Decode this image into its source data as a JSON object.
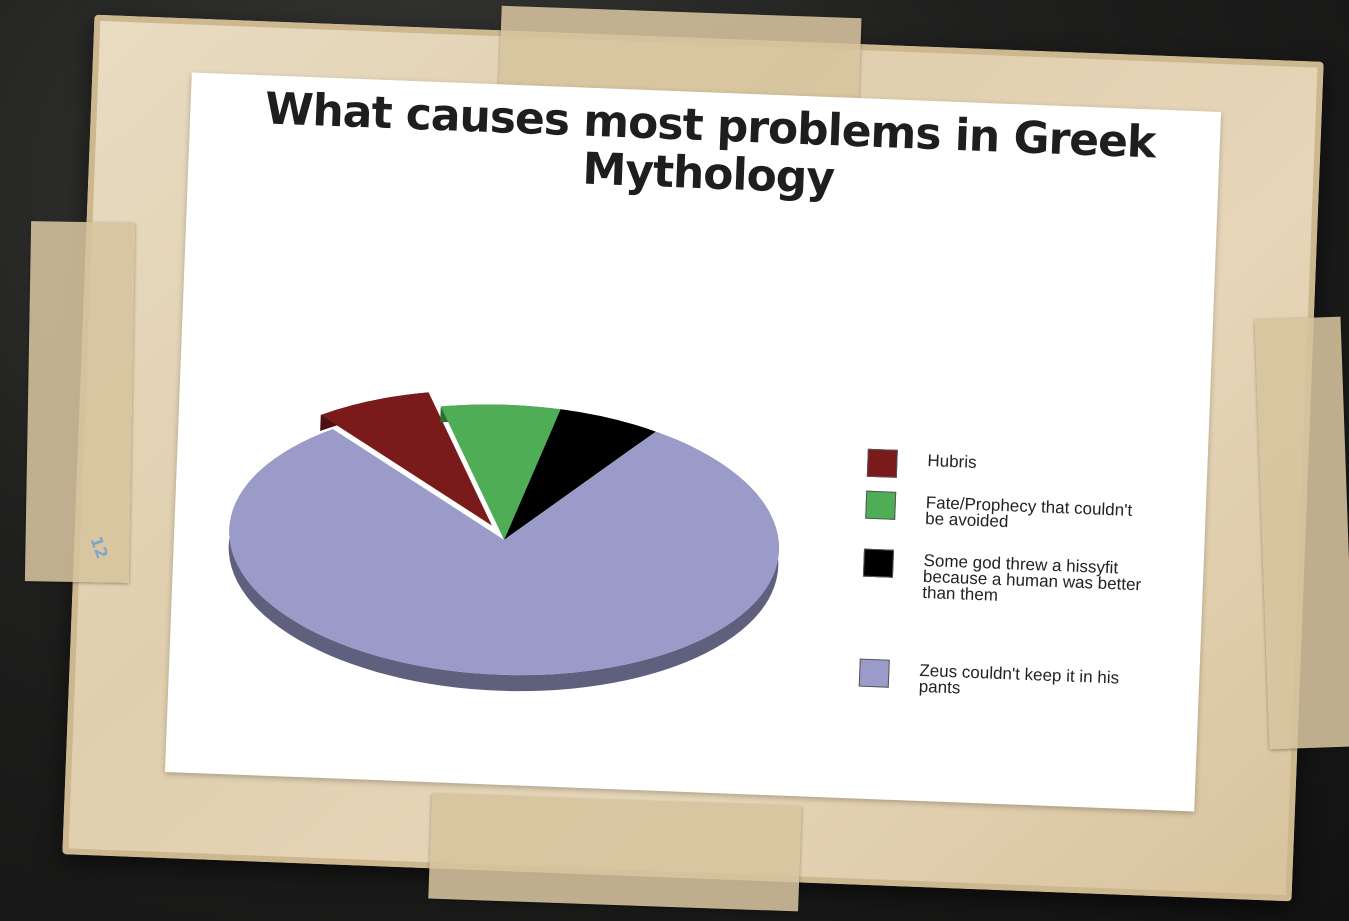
{
  "chart_data": {
    "type": "pie",
    "title": "What causes most problems in Greek Mythology",
    "categories": [
      "Hubris",
      "Fate/Prophecy that couldn't be avoided",
      "Some god threw a hissyfit because a human was better than them",
      "Zeus couldn't keep it in his pants"
    ],
    "values": [
      7,
      7,
      6,
      80
    ],
    "colors": [
      "#7a1a1a",
      "#4fae55",
      "#000000",
      "#9a9bc9"
    ],
    "exploded": [
      "Hubris"
    ],
    "legend_position": "right",
    "style": "3d"
  },
  "page": {
    "handwritten_mark": "12"
  }
}
